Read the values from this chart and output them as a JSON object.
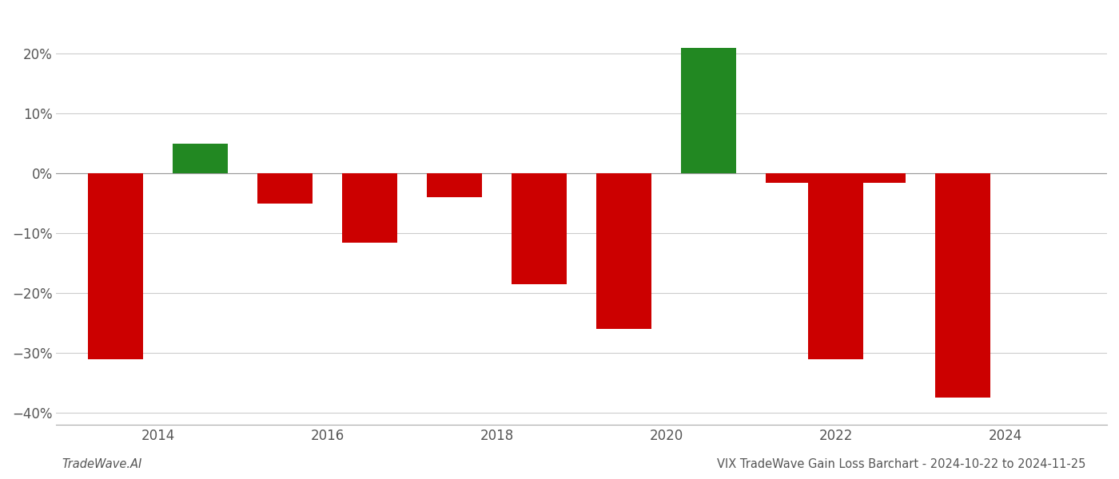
{
  "years": [
    2013.5,
    2014.5,
    2015.5,
    2016.5,
    2017.5,
    2018.5,
    2019.5,
    2020.5,
    2021.5,
    2022.0,
    2022.5,
    2023.5
  ],
  "values": [
    -0.31,
    0.05,
    -0.05,
    -0.115,
    -0.04,
    -0.185,
    -0.26,
    0.21,
    -0.015,
    -0.31,
    -0.015,
    -0.375
  ],
  "colors": [
    "#cc0000",
    "#228822",
    "#cc0000",
    "#cc0000",
    "#cc0000",
    "#cc0000",
    "#cc0000",
    "#228822",
    "#cc0000",
    "#cc0000",
    "#cc0000",
    "#cc0000"
  ],
  "ylim": [
    -0.42,
    0.27
  ],
  "yticks": [
    -0.4,
    -0.3,
    -0.2,
    -0.1,
    0.0,
    0.1,
    0.2
  ],
  "ytick_labels": [
    "−40%",
    "−30%",
    "−20%",
    "−10%",
    "0%",
    "10%",
    "20%"
  ],
  "xtick_positions": [
    2014,
    2016,
    2018,
    2020,
    2022,
    2024
  ],
  "xlim": [
    2012.8,
    2025.2
  ],
  "footer_left": "TradeWave.AI",
  "footer_right": "VIX TradeWave Gain Loss Barchart - 2024-10-22 to 2024-11-25",
  "bar_width": 0.65,
  "background_color": "#ffffff",
  "grid_color": "#cccccc",
  "tick_fontsize": 12,
  "footer_fontsize": 10.5
}
